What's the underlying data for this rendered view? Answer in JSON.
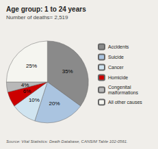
{
  "chart_data": {
    "type": "pie",
    "title": "Age group: 1 to 24 years",
    "subtitle": "Number of deaths= 2,519",
    "annotations": [
      "Source: Vital Statistics: Death Database, CANSIM Table 102-0561."
    ],
    "categories": [
      "Accidents",
      "Suicide",
      "Cancer",
      "Homicide",
      "Congenital\nmalformations",
      "All other causes"
    ],
    "values": [
      35,
      20,
      10,
      6,
      4,
      25
    ],
    "value_labels": [
      "35%",
      "20%",
      "10%",
      "6%",
      "4%",
      "25%"
    ],
    "colors": [
      "#8a8a8a",
      "#aac4e0",
      "#d0e4f0",
      "#cc0000",
      "#b8b8b8",
      "#f5f5f0"
    ],
    "data_labels": true,
    "legend": "right"
  }
}
